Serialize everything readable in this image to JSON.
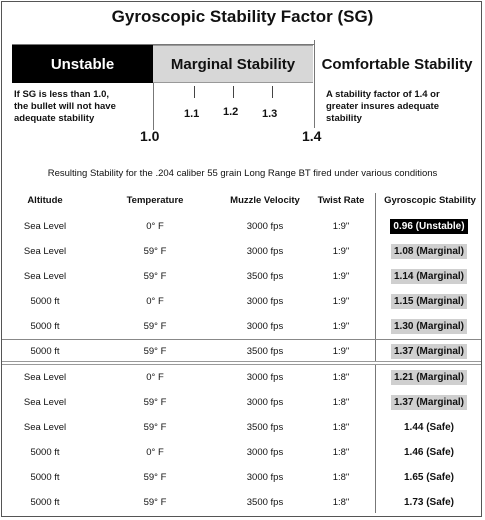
{
  "title": "Gyroscopic Stability Factor (SG)",
  "bands": {
    "unstable": "Unstable",
    "marginal": "Marginal Stability",
    "comfortable": "Comfortable Stability"
  },
  "descriptions": {
    "left": [
      "If SG is less than 1.0,",
      "the bullet will not have",
      "adequate stability"
    ],
    "right": [
      "A stability factor of 1.4 or",
      "greater insures adequate",
      "stability"
    ]
  },
  "ticks": {
    "small": [
      "1.1",
      "1.2",
      "1.3"
    ],
    "big_left": "1.0",
    "big_right": "1.4"
  },
  "caption": "Resulting Stability for the .204 caliber 55 grain Long Range BT fired under various conditions",
  "table": {
    "headers": [
      "Altitude",
      "Temperature",
      "Muzzle Velocity",
      "Twist Rate",
      "Gyroscopic Stability"
    ],
    "rows": [
      {
        "altitude": "Sea Level",
        "temperature": "0° F",
        "velocity": "3000 fps",
        "twist": "1:9\"",
        "stability": "0.96 (Unstable)",
        "level": "unstable"
      },
      {
        "altitude": "Sea Level",
        "temperature": "59° F",
        "velocity": "3000 fps",
        "twist": "1:9\"",
        "stability": "1.08 (Marginal)",
        "level": "marginal"
      },
      {
        "altitude": "Sea Level",
        "temperature": "59° F",
        "velocity": "3500 fps",
        "twist": "1:9\"",
        "stability": "1.14 (Marginal)",
        "level": "marginal"
      },
      {
        "altitude": "5000 ft",
        "temperature": "0° F",
        "velocity": "3000 fps",
        "twist": "1:9\"",
        "stability": "1.15 (Marginal)",
        "level": "marginal"
      },
      {
        "altitude": "5000 ft",
        "temperature": "59° F",
        "velocity": "3000 fps",
        "twist": "1:9\"",
        "stability": "1.30 (Marginal)",
        "level": "marginal"
      },
      {
        "altitude": "5000 ft",
        "temperature": "59° F",
        "velocity": "3500 fps",
        "twist": "1:9\"",
        "stability": "1.37 (Marginal)",
        "level": "marginal"
      },
      {
        "altitude": "Sea Level",
        "temperature": "0° F",
        "velocity": "3000 fps",
        "twist": "1:8\"",
        "stability": "1.21 (Marginal)",
        "level": "marginal"
      },
      {
        "altitude": "Sea Level",
        "temperature": "59° F",
        "velocity": "3000 fps",
        "twist": "1:8\"",
        "stability": "1.37 (Marginal)",
        "level": "marginal"
      },
      {
        "altitude": "Sea Level",
        "temperature": "59° F",
        "velocity": "3500 fps",
        "twist": "1:8\"",
        "stability": "1.44 (Safe)",
        "level": "safe"
      },
      {
        "altitude": "5000 ft",
        "temperature": "0° F",
        "velocity": "3000 fps",
        "twist": "1:8\"",
        "stability": "1.46 (Safe)",
        "level": "safe"
      },
      {
        "altitude": "5000 ft",
        "temperature": "59° F",
        "velocity": "3000 fps",
        "twist": "1:8\"",
        "stability": "1.65 (Safe)",
        "level": "safe"
      },
      {
        "altitude": "5000 ft",
        "temperature": "59° F",
        "velocity": "3500 fps",
        "twist": "1:8\"",
        "stability": "1.73 (Safe)",
        "level": "safe"
      }
    ]
  }
}
